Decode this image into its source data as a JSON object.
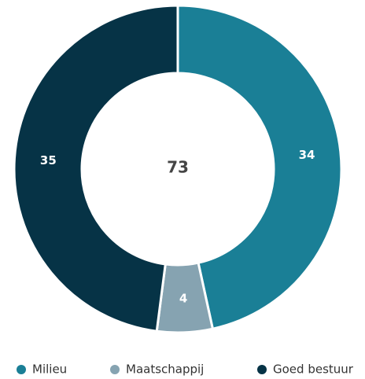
{
  "chart_data": {
    "type": "donut",
    "categories": [
      "Milieu",
      "Maatschappij",
      "Goed bestuur"
    ],
    "values": [
      34,
      4,
      35
    ],
    "colors": [
      "#1a7f96",
      "#86a3b1",
      "#063346"
    ],
    "total": 73,
    "legend": "bottom"
  }
}
